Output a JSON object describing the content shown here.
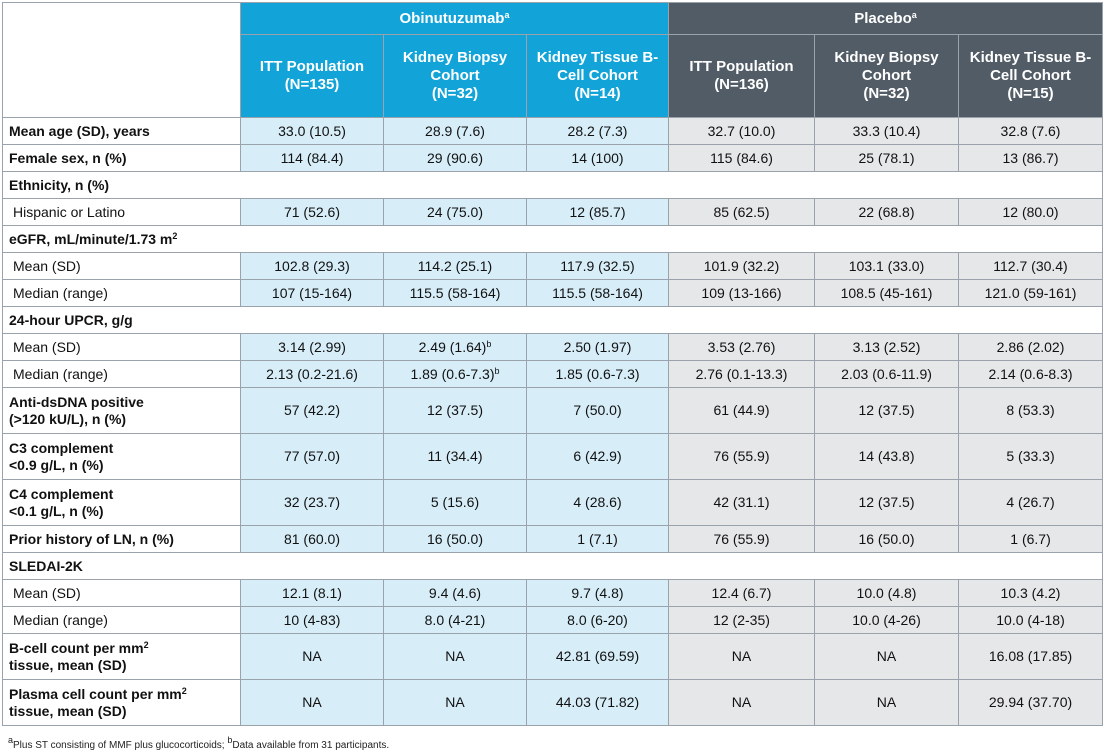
{
  "header": {
    "obinutuzumab": "Obinutuzumab",
    "obinutuzumab_sup": "a",
    "placebo": "Placebo",
    "placebo_sup": "a",
    "cohorts": [
      {
        "name": "ITT Population",
        "n": "(N=135)"
      },
      {
        "name": "Kidney Biopsy Cohort",
        "n": "(N=32)"
      },
      {
        "name": "Kidney Tissue B-Cell Cohort",
        "n": "(N=14)"
      },
      {
        "name": "ITT Population",
        "n": "(N=136)"
      },
      {
        "name": "Kidney Biopsy Cohort",
        "n": "(N=32)"
      },
      {
        "name": "Kidney Tissue B-Cell Cohort",
        "n": "(N=15)"
      }
    ]
  },
  "rows": {
    "age": {
      "label": "Mean age (SD), years",
      "v": [
        "33.0 (10.5)",
        "28.9 (7.6)",
        "28.2 (7.3)",
        "32.7 (10.0)",
        "33.3 (10.4)",
        "32.8 (7.6)"
      ]
    },
    "female": {
      "label": "Female sex, n (%)",
      "v": [
        "114 (84.4)",
        "29 (90.6)",
        "14 (100)",
        "115 (84.6)",
        "25 (78.1)",
        "13 (86.7)"
      ]
    },
    "ethnicity": {
      "label": "Ethnicity, n (%)"
    },
    "hispanic": {
      "label": "Hispanic or Latino",
      "v": [
        "71 (52.6)",
        "24 (75.0)",
        "12 (85.7)",
        "85 (62.5)",
        "22 (68.8)",
        "12 (80.0)"
      ]
    },
    "egfr": {
      "label": "eGFR, mL/minute/1.73 m",
      "label_sup": "2"
    },
    "egfr_mean": {
      "label": "Mean (SD)",
      "v": [
        "102.8 (29.3)",
        "114.2 (25.1)",
        "117.9 (32.5)",
        "101.9 (32.2)",
        "103.1 (33.0)",
        "112.7 (30.4)"
      ]
    },
    "egfr_median": {
      "label": "Median (range)",
      "v": [
        "107 (15-164)",
        "115.5 (58-164)",
        "115.5 (58-164)",
        "109 (13-166)",
        "108.5 (45-161)",
        "121.0 (59-161)"
      ]
    },
    "upcr": {
      "label": "24-hour UPCR, g/g"
    },
    "upcr_mean": {
      "label": "Mean (SD)",
      "v": [
        "3.14 (2.99)",
        "2.49 (1.64)",
        "2.50 (1.97)",
        "3.53 (2.76)",
        "3.13 (2.52)",
        "2.86 (2.02)"
      ],
      "sup1": "b"
    },
    "upcr_median": {
      "label": "Median (range)",
      "v": [
        "2.13 (0.2-21.6)",
        "1.89 (0.6-7.3)",
        "1.85 (0.6-7.3)",
        "2.76 (0.1-13.3)",
        "2.03 (0.6-11.9)",
        "2.14 (0.6-8.3)"
      ],
      "sup1": "b"
    },
    "dsdna": {
      "label1": "Anti-dsDNA positive",
      "label2": "(>120 kU/L), n (%)",
      "v": [
        "57 (42.2)",
        "12 (37.5)",
        "7 (50.0)",
        "61 (44.9)",
        "12 (37.5)",
        "8 (53.3)"
      ]
    },
    "c3": {
      "label1": "C3 complement",
      "label2": "<0.9 g/L, n (%)",
      "v": [
        "77 (57.0)",
        "11 (34.4)",
        "6 (42.9)",
        "76 (55.9)",
        "14 (43.8)",
        "5 (33.3)"
      ]
    },
    "c4": {
      "label1": "C4 complement",
      "label2": "<0.1 g/L, n (%)",
      "v": [
        "32 (23.7)",
        "5 (15.6)",
        "4 (28.6)",
        "42 (31.1)",
        "12 (37.5)",
        "4 (26.7)"
      ]
    },
    "ln": {
      "label": "Prior history of LN, n (%)",
      "v": [
        "81 (60.0)",
        "16 (50.0)",
        "1 (7.1)",
        "76 (55.9)",
        "16 (50.0)",
        "1 (6.7)"
      ]
    },
    "sledai": {
      "label": "SLEDAI-2K"
    },
    "sledai_mean": {
      "label": "Mean (SD)",
      "v": [
        "12.1 (8.1)",
        "9.4 (4.6)",
        "9.7 (4.8)",
        "12.4 (6.7)",
        "10.0 (4.8)",
        "10.3 (4.2)"
      ]
    },
    "sledai_median": {
      "label": "Median (range)",
      "v": [
        "10 (4-83)",
        "8.0 (4-21)",
        "8.0 (6-20)",
        "12 (2-35)",
        "10.0 (4-26)",
        "10.0 (4-18)"
      ]
    },
    "bcell": {
      "label1": "B-cell count per mm",
      "label1_sup": "2",
      "label2": "tissue, mean (SD)",
      "v": [
        "NA",
        "NA",
        "42.81 (69.59)",
        "NA",
        "NA",
        "16.08 (17.85)"
      ]
    },
    "plasma": {
      "label1": "Plasma cell count per mm",
      "label1_sup": "2",
      "label2": "tissue, mean (SD)",
      "v": [
        "NA",
        "NA",
        "44.03 (71.82)",
        "NA",
        "NA",
        "29.94 (37.70)"
      ]
    }
  },
  "footnote": {
    "sup_a": "a",
    "text_a": "Plus ST consisting of MMF plus glucocorticoids; ",
    "sup_b": "b",
    "text_b": "Data available from 31 participants."
  }
}
